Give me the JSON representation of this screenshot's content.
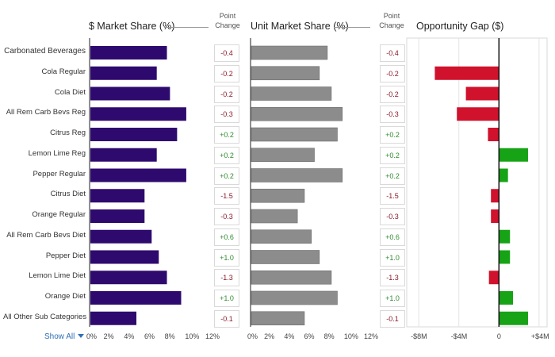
{
  "headers": {
    "market_share": "$ Market Share (%)",
    "unit_share": "Unit Market Share (%)",
    "opportunity": "Opportunity Gap ($)",
    "point_change_1": "Point",
    "point_change_2": "Change"
  },
  "show_all": "Show All",
  "chart_data": [
    {
      "type": "bar",
      "orientation": "horizontal",
      "title": "$ Market Share (%)",
      "categories": [
        "Carbonated Beverages",
        "Cola Regular",
        "Cola Diet",
        "All Rem Carb Bevs Reg",
        "Citrus Reg",
        "Lemon Lime Reg",
        "Pepper Regular",
        "Citrus Diet",
        "Orange Regular",
        "All Rem Carb Bevs Diet",
        "Pepper Diet",
        "Lemon Lime Diet",
        "Orange Diet",
        "All Other Sub Categories"
      ],
      "values": [
        7.6,
        6.6,
        7.9,
        9.5,
        8.6,
        6.6,
        9.5,
        5.4,
        5.4,
        6.1,
        6.8,
        7.6,
        9.0,
        4.6
      ],
      "xlim": [
        0,
        12
      ],
      "xticks": [
        "0%",
        "2%",
        "4%",
        "6%",
        "8%",
        "10%",
        "12%"
      ],
      "color": "#2e0a6e",
      "point_change": [
        "-0.4",
        "-0.2",
        "-0.2",
        "-0.3",
        "+0.2",
        "+0.2",
        "+0.2",
        "-1.5",
        "-0.3",
        "+0.6",
        "+1.0",
        "-1.3",
        "+1.0",
        "-0.1"
      ]
    },
    {
      "type": "bar",
      "orientation": "horizontal",
      "title": "Unit Market Share (%)",
      "categories": [
        "Carbonated Beverages",
        "Cola Regular",
        "Cola Diet",
        "All Rem Carb Bevs Reg",
        "Citrus Reg",
        "Lemon Lime Reg",
        "Pepper Regular",
        "Citrus Diet",
        "Orange Regular",
        "All Rem Carb Bevs Diet",
        "Pepper Diet",
        "Lemon Lime Diet",
        "Orange Diet",
        "All Other Sub Categories"
      ],
      "values": [
        7.7,
        6.9,
        8.1,
        9.2,
        8.7,
        6.4,
        9.2,
        5.4,
        4.7,
        6.1,
        6.9,
        8.1,
        8.7,
        5.4
      ],
      "xlim": [
        0,
        12
      ],
      "xticks": [
        "0%",
        "2%",
        "4%",
        "6%",
        "8%",
        "10%",
        "12%"
      ],
      "color": "#8c8c8c",
      "point_change": [
        "-0.4",
        "-0.2",
        "-0.2",
        "-0.3",
        "+0.2",
        "+0.2",
        "+0.2",
        "-1.5",
        "-0.3",
        "+0.6",
        "+1.0",
        "-1.3",
        "+1.0",
        "-0.1"
      ]
    },
    {
      "type": "bar",
      "orientation": "horizontal",
      "title": "Opportunity Gap ($)",
      "categories": [
        "Carbonated Beverages",
        "Cola Regular",
        "Cola Diet",
        "All Rem Carb Bevs Reg",
        "Citrus Reg",
        "Lemon Lime Reg",
        "Pepper Regular",
        "Citrus Diet",
        "Orange Regular",
        "All Rem Carb Bevs Diet",
        "Pepper Diet",
        "Lemon Lime Diet",
        "Orange Diet",
        "All Other Sub Categories"
      ],
      "values": [
        0,
        -6.4,
        -3.3,
        -4.2,
        -1.1,
        2.9,
        0.9,
        -0.8,
        -0.8,
        1.1,
        1.1,
        -1.0,
        1.4,
        2.9
      ],
      "units": "$M",
      "xlim": [
        -9.2,
        4.8
      ],
      "xticks": [
        {
          "v": -8,
          "label": "-$8M"
        },
        {
          "v": -4,
          "label": "-$4M"
        },
        {
          "v": 0,
          "label": "0"
        },
        {
          "v": 4,
          "label": "+$4M"
        }
      ],
      "colors": {
        "positive": "#16a316",
        "negative": "#d0122c"
      }
    }
  ]
}
